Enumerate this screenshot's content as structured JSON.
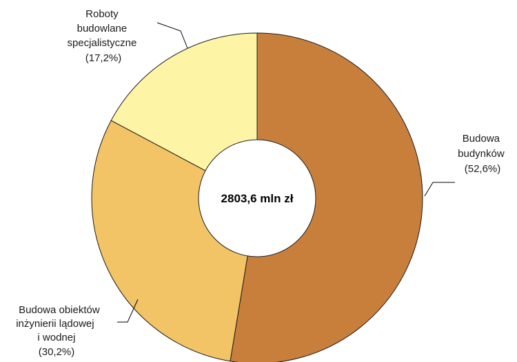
{
  "chart_data": {
    "type": "pie",
    "donut": true,
    "center_label": "2803,6 mln zł",
    "slices": [
      {
        "lines": [
          "Budowa",
          "budynków"
        ],
        "percent_text": "(52,6%)",
        "value": 52.6,
        "color": "#c97f3c"
      },
      {
        "lines": [
          "Budowa obiektów",
          "inżynierii lądowej",
          "i wodnej"
        ],
        "percent_text": "(30,2%)",
        "value": 30.2,
        "color": "#f2c466"
      },
      {
        "lines": [
          "Roboty",
          "budowlane",
          "specjalistyczne"
        ],
        "percent_text": "(17,2%)",
        "value": 17.2,
        "color": "#fdf5a5"
      }
    ]
  }
}
